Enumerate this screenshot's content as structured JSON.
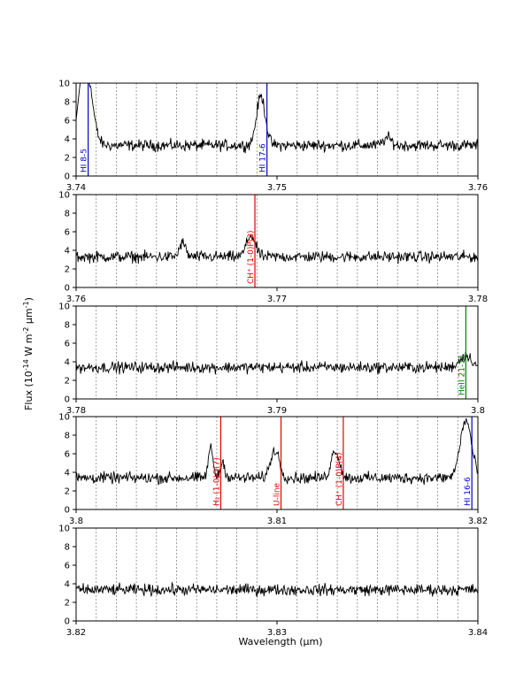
{
  "figure": {
    "ylabel": "Flux (10$^{-14}$ W m$^{-2}$ µm$^{-1}$)",
    "xlabel": "Wavelength (µm)"
  },
  "colors": {
    "trace": "#000000",
    "HI": "#0000cc",
    "H2": "#dd0000",
    "CH+": "#dd0000",
    "HeII": "#008000",
    "grid": "#888888"
  },
  "chart_data": [
    {
      "type": "line",
      "xlim": [
        3.74,
        3.76
      ],
      "ylim": [
        0,
        10
      ],
      "xticks": [
        "3.74",
        "3.75",
        "3.76"
      ],
      "yticks": [
        "0",
        "2",
        "4",
        "6",
        "8",
        "10"
      ],
      "grid_x": [
        3.741,
        3.742,
        3.743,
        3.744,
        3.745,
        3.746,
        3.747,
        3.748,
        3.749,
        3.751,
        3.752,
        3.753,
        3.754,
        3.755,
        3.756,
        3.757,
        3.758,
        3.759
      ],
      "baseline": 3.3,
      "noise": 0.3,
      "features": [
        {
          "center": 3.7405,
          "peak": 11.5,
          "width": 0.0003
        },
        {
          "center": 3.7492,
          "peak": 8.6,
          "width": 0.00022
        },
        {
          "center": 3.7555,
          "peak": 4.1,
          "width": 0.0002
        }
      ],
      "lines": [
        {
          "x": 3.7406,
          "label": "HI 8-5",
          "kind": "HI"
        },
        {
          "x": 3.7495,
          "label": "HI 17-6",
          "kind": "HI"
        }
      ]
    },
    {
      "type": "line",
      "xlim": [
        3.76,
        3.78
      ],
      "ylim": [
        0,
        10
      ],
      "xticks": [
        "3.76",
        "3.77",
        "3.78"
      ],
      "yticks": [
        "0",
        "2",
        "4",
        "6",
        "8",
        "10"
      ],
      "grid_x": [
        3.761,
        3.762,
        3.763,
        3.764,
        3.765,
        3.766,
        3.767,
        3.768,
        3.769,
        3.771,
        3.772,
        3.773,
        3.774,
        3.775,
        3.776,
        3.777,
        3.778,
        3.779
      ],
      "baseline": 3.3,
      "noise": 0.3,
      "features": [
        {
          "center": 3.7653,
          "peak": 4.8,
          "width": 0.00015
        },
        {
          "center": 3.7687,
          "peak": 5.6,
          "width": 0.00022
        }
      ],
      "lines": [
        {
          "x": 3.7689,
          "label": "CH⁺ (1-0)P(3)",
          "kind": "CH+"
        }
      ]
    },
    {
      "type": "line",
      "xlim": [
        3.78,
        3.8
      ],
      "ylim": [
        0,
        10
      ],
      "xticks": [
        "3.78",
        "3.79",
        "3.8"
      ],
      "yticks": [
        "0",
        "2",
        "4",
        "6",
        "8",
        "10"
      ],
      "grid_x": [
        3.781,
        3.782,
        3.783,
        3.784,
        3.785,
        3.786,
        3.787,
        3.788,
        3.789,
        3.791,
        3.792,
        3.793,
        3.794,
        3.795,
        3.796,
        3.797,
        3.798,
        3.799
      ],
      "baseline": 3.4,
      "noise": 0.3,
      "features": [
        {
          "center": 3.7994,
          "peak": 4.7,
          "width": 0.0003
        }
      ],
      "lines": [
        {
          "x": 3.7994,
          "label": "HeII 21-11",
          "kind": "HeII"
        }
      ]
    },
    {
      "type": "line",
      "xlim": [
        3.8,
        3.82
      ],
      "ylim": [
        0,
        10
      ],
      "xticks": [
        "3.8",
        "3.81",
        "3.82"
      ],
      "yticks": [
        "0",
        "2",
        "4",
        "6",
        "8",
        "10"
      ],
      "grid_x": [
        3.801,
        3.802,
        3.803,
        3.804,
        3.805,
        3.806,
        3.807,
        3.808,
        3.809,
        3.811,
        3.812,
        3.813,
        3.814,
        3.815,
        3.816,
        3.817,
        3.818,
        3.819
      ],
      "baseline": 3.4,
      "noise": 0.3,
      "features": [
        {
          "center": 3.8067,
          "peak": 6.6,
          "width": 0.00012
        },
        {
          "center": 3.8073,
          "peak": 5.0,
          "width": 0.00012
        },
        {
          "center": 3.8099,
          "peak": 6.4,
          "width": 0.00022
        },
        {
          "center": 3.8129,
          "peak": 6.4,
          "width": 0.0002
        },
        {
          "center": 3.8194,
          "peak": 9.6,
          "width": 0.00028
        }
      ],
      "lines": [
        {
          "x": 3.8072,
          "label": "H₂ (1-0)O(7)",
          "kind": "H2"
        },
        {
          "x": 3.8102,
          "label": "U-line",
          "kind": "H2"
        },
        {
          "x": 3.8133,
          "label": "CH⁺ (1-0)P(4)",
          "kind": "CH+"
        },
        {
          "x": 3.8197,
          "label": "HI 16-6",
          "kind": "HI"
        }
      ]
    },
    {
      "type": "line",
      "xlim": [
        3.82,
        3.84
      ],
      "ylim": [
        0,
        10
      ],
      "xticks": [
        "3.82",
        "3.83",
        "3.84"
      ],
      "yticks": [
        "0",
        "2",
        "4",
        "6",
        "8",
        "10"
      ],
      "grid_x": [
        3.821,
        3.822,
        3.823,
        3.824,
        3.825,
        3.826,
        3.827,
        3.828,
        3.829,
        3.831,
        3.832,
        3.833,
        3.834,
        3.835,
        3.836,
        3.837,
        3.838,
        3.839
      ],
      "baseline": 3.35,
      "noise": 0.3,
      "features": [],
      "lines": []
    }
  ]
}
